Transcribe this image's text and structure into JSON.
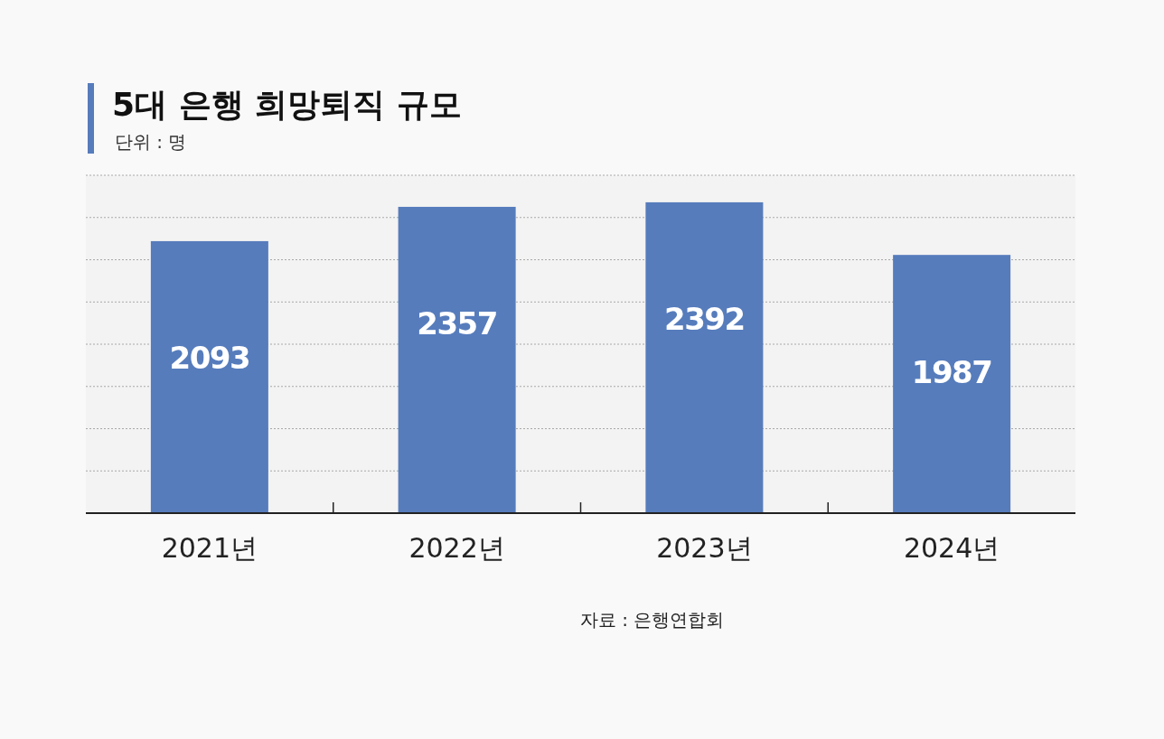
{
  "chart_data": {
    "type": "bar",
    "title": "5대 은행 희망퇴직 규모",
    "subtitle": "단위 : 명",
    "categories": [
      "2021년",
      "2022년",
      "2023년",
      "2024년"
    ],
    "values": [
      2093,
      2357,
      2392,
      1987
    ],
    "color": "#567cbc",
    "data_labels": true,
    "ylim": [
      0,
      2600
    ],
    "yticks": [
      {
        "value": 0,
        "label": null
      },
      {
        "value": 325,
        "label": null
      },
      {
        "value": 650,
        "label": null
      },
      {
        "value": 975,
        "label": null
      },
      {
        "value": 1300,
        "label": null
      },
      {
        "value": 1625,
        "label": null
      },
      {
        "value": 1950,
        "label": null
      },
      {
        "value": 2275,
        "label": null
      },
      {
        "value": 2600,
        "label": null
      }
    ],
    "grid": "y",
    "tick_labels": "x",
    "annotations": [
      "자료 : 은행연합회"
    ]
  }
}
